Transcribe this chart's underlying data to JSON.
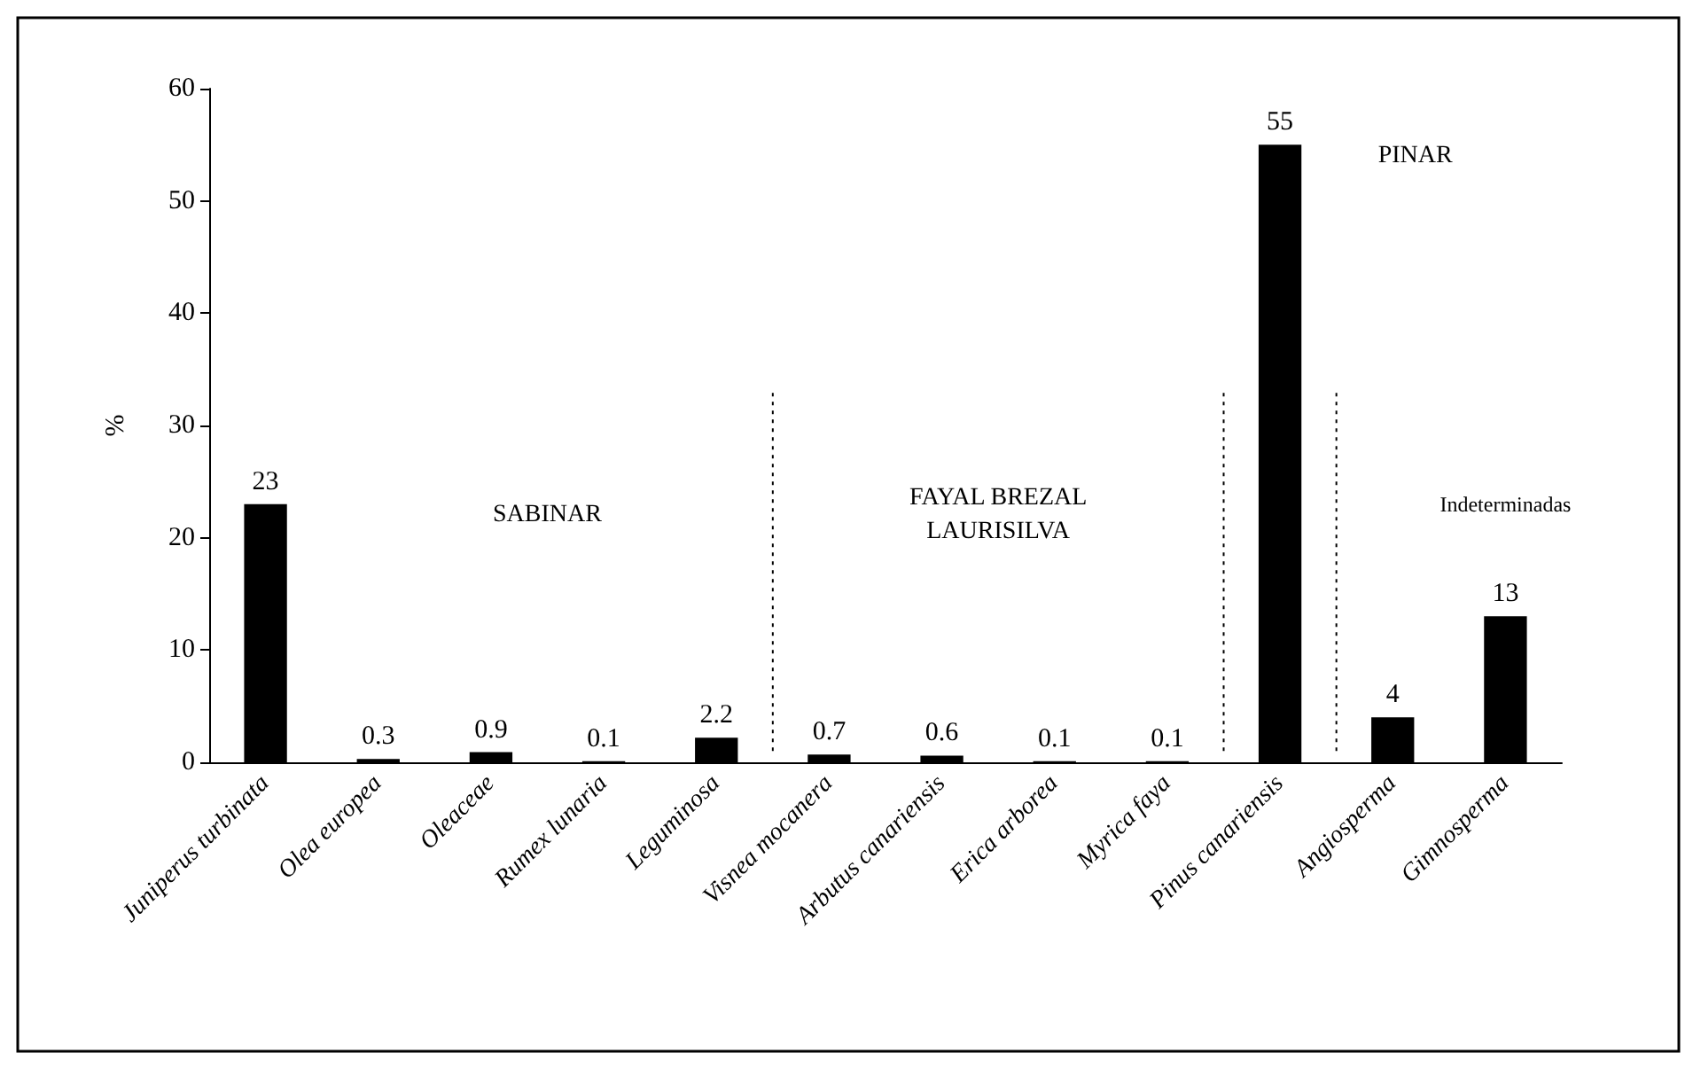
{
  "chart_data": {
    "type": "bar",
    "ylabel": "%",
    "categories": [
      "Juniperus turbinata",
      "Olea europea",
      "Oleaceae",
      "Rumex lunaria",
      "Leguminosa",
      "Visnea mocanera",
      "Arbutus canariensis",
      "Erica arborea",
      "Myrica faya",
      "Pinus canariensis",
      "Angiosperma",
      "Gimnosperma"
    ],
    "values": [
      23,
      0.3,
      0.9,
      0.1,
      2.2,
      0.7,
      0.6,
      0.1,
      0.1,
      55,
      4,
      13
    ],
    "color": "#000000",
    "ylim": [
      0,
      60
    ],
    "yticks": [
      0,
      10,
      20,
      30,
      40,
      50,
      60
    ],
    "grid": false,
    "data_labels": true,
    "annotations": [
      "SABINAR",
      "FAYAL BREZAL\nLAURISILVA",
      "PINAR",
      "Indeterminadas"
    ]
  }
}
